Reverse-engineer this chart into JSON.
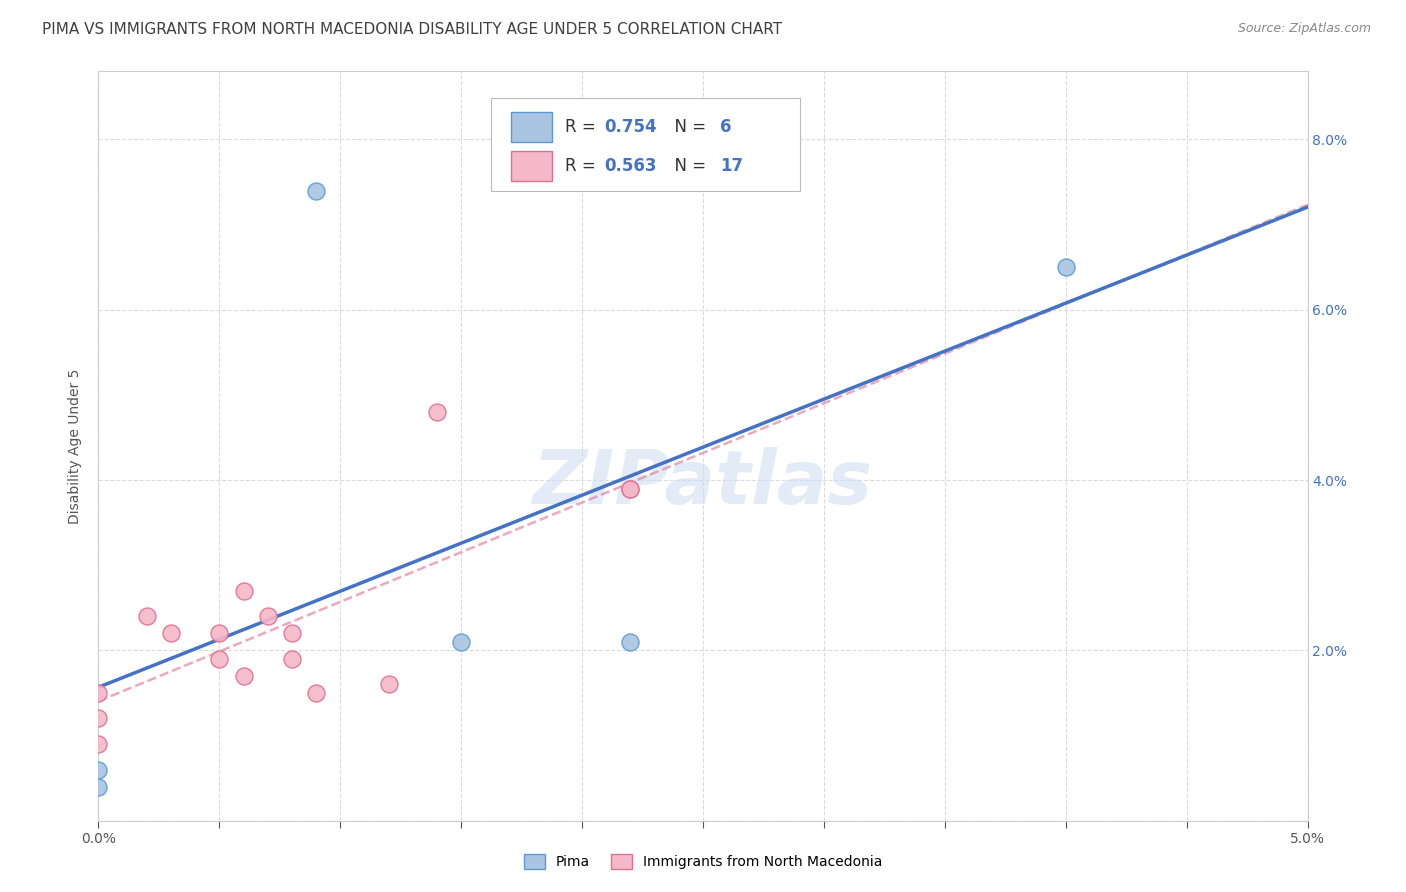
{
  "title": "PIMA VS IMMIGRANTS FROM NORTH MACEDONIA DISABILITY AGE UNDER 5 CORRELATION CHART",
  "source": "Source: ZipAtlas.com",
  "ylabel": "Disability Age Under 5",
  "xlim": [
    0.0,
    0.05
  ],
  "ylim": [
    0.0,
    0.088
  ],
  "xticks": [
    0.0,
    0.005,
    0.01,
    0.015,
    0.02,
    0.025,
    0.03,
    0.035,
    0.04,
    0.045,
    0.05
  ],
  "xticklabels": [
    "0.0%",
    "",
    "",
    "",
    "",
    "",
    "",
    "",
    "",
    "",
    "5.0%"
  ],
  "yticks": [
    0.0,
    0.02,
    0.04,
    0.06,
    0.08
  ],
  "yticklabels": [
    "",
    "2.0%",
    "4.0%",
    "6.0%",
    "8.0%"
  ],
  "pima_color": "#aac4e2",
  "pima_edge_color": "#5b9bd5",
  "immigrants_color": "#f4b8c8",
  "immigrants_edge_color": "#e07090",
  "pima_line_color": "#4472c4",
  "immigrants_line_color": "#e07090",
  "R_pima": 0.754,
  "N_pima": 6,
  "R_immigrants": 0.563,
  "N_immigrants": 17,
  "watermark": "ZIPatlas",
  "background_color": "#ffffff",
  "grid_color": "#d8d8d8",
  "pima_points_x": [
    0.0,
    0.0,
    0.009,
    0.015,
    0.022,
    0.04
  ],
  "pima_points_y": [
    0.004,
    0.006,
    0.074,
    0.021,
    0.021,
    0.065
  ],
  "immigrants_points_x": [
    0.0,
    0.0,
    0.0,
    0.002,
    0.003,
    0.005,
    0.005,
    0.006,
    0.006,
    0.007,
    0.008,
    0.008,
    0.009,
    0.012,
    0.014,
    0.022,
    0.022
  ],
  "immigrants_points_y": [
    0.009,
    0.012,
    0.015,
    0.024,
    0.022,
    0.019,
    0.022,
    0.017,
    0.027,
    0.024,
    0.019,
    0.022,
    0.015,
    0.016,
    0.048,
    0.039,
    0.039
  ],
  "legend_box_color": "#ffffff",
  "legend_border_color": "#cccccc",
  "title_color": "#404040",
  "r_value_color": "#4472c4",
  "title_fontsize": 11,
  "axis_label_fontsize": 10,
  "tick_fontsize": 10,
  "legend_fontsize": 12,
  "scatter_size": 150
}
